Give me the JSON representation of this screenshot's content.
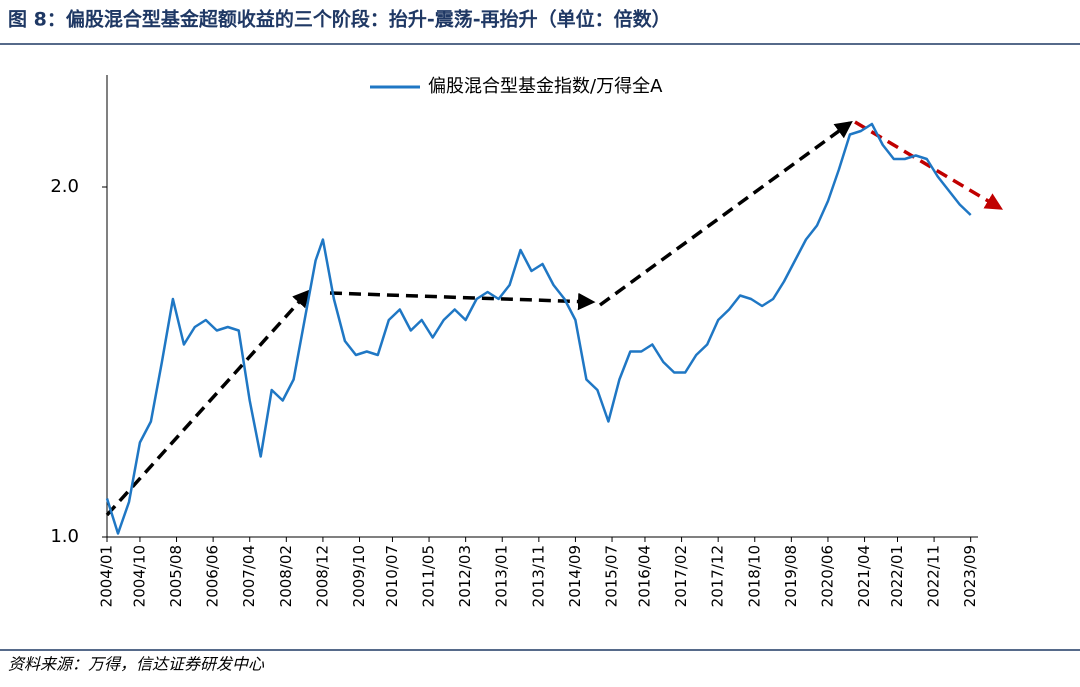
{
  "chart_data": {
    "type": "line",
    "title": "图 8：偏股混合型基金超额收益的三个阶段：抬升-震荡-再抬升（单位：倍数）",
    "source": "资料来源：万得，信达证券研发中心",
    "x": [
      "2004/01",
      "2004/04",
      "2004/07",
      "2004/10",
      "2005/01",
      "2005/04",
      "2005/07",
      "2005/10",
      "2006/01",
      "2006/04",
      "2006/07",
      "2006/10",
      "2007/01",
      "2007/04",
      "2007/07",
      "2007/10",
      "2008/01",
      "2008/04",
      "2008/07",
      "2008/10",
      "2008/12",
      "2009/03",
      "2009/06",
      "2009/09",
      "2009/12",
      "2010/03",
      "2010/06",
      "2010/09",
      "2010/12",
      "2011/03",
      "2011/06",
      "2011/09",
      "2011/12",
      "2012/03",
      "2012/06",
      "2012/09",
      "2012/12",
      "2013/03",
      "2013/06",
      "2013/09",
      "2013/12",
      "2014/03",
      "2014/06",
      "2014/09",
      "2014/12",
      "2015/03",
      "2015/06",
      "2015/09",
      "2015/12",
      "2016/03",
      "2016/06",
      "2016/09",
      "2016/12",
      "2017/03",
      "2017/06",
      "2017/09",
      "2017/12",
      "2018/03",
      "2018/06",
      "2018/09",
      "2018/12",
      "2019/03",
      "2019/06",
      "2019/09",
      "2019/12",
      "2020/03",
      "2020/06",
      "2020/09",
      "2020/12",
      "2021/03",
      "2021/06",
      "2021/09",
      "2021/12",
      "2022/03",
      "2022/06",
      "2022/09",
      "2022/12",
      "2023/03",
      "2023/06",
      "2023/09"
    ],
    "series": [
      {
        "name": "偏股混合型基金指数/万得全A",
        "color": "#1f77c4",
        "values": [
          1.11,
          1.01,
          1.1,
          1.27,
          1.33,
          1.5,
          1.68,
          1.55,
          1.6,
          1.62,
          1.59,
          1.6,
          1.59,
          1.39,
          1.23,
          1.42,
          1.39,
          1.45,
          1.62,
          1.79,
          1.85,
          1.68,
          1.56,
          1.52,
          1.53,
          1.52,
          1.62,
          1.65,
          1.59,
          1.62,
          1.57,
          1.62,
          1.65,
          1.62,
          1.68,
          1.7,
          1.68,
          1.72,
          1.82,
          1.76,
          1.78,
          1.72,
          1.68,
          1.62,
          1.45,
          1.42,
          1.33,
          1.45,
          1.53,
          1.53,
          1.55,
          1.5,
          1.47,
          1.47,
          1.52,
          1.55,
          1.62,
          1.65,
          1.69,
          1.68,
          1.66,
          1.68,
          1.73,
          1.79,
          1.85,
          1.89,
          1.96,
          2.05,
          2.15,
          2.16,
          2.18,
          2.12,
          2.08,
          2.08,
          2.09,
          2.08,
          2.03,
          1.99,
          1.95,
          1.92
        ]
      }
    ],
    "xlim": [
      "2004/01",
      "2023/11"
    ],
    "xticks": [
      "2004/01",
      "2004/10",
      "2005/08",
      "2006/06",
      "2007/04",
      "2008/02",
      "2008/12",
      "2009/10",
      "2010/07",
      "2011/05",
      "2012/03",
      "2013/01",
      "2013/11",
      "2014/09",
      "2015/07",
      "2016/04",
      "2017/02",
      "2017/12",
      "2018/10",
      "2019/08",
      "2020/06",
      "2021/04",
      "2022/01",
      "2022/11",
      "2023/09"
    ],
    "ylim": [
      1.0,
      2.32
    ],
    "yticks": [
      {
        "value": 1,
        "label": "1.0"
      },
      {
        "value": 2,
        "label": "2.0"
      }
    ],
    "legend": "top"
  }
}
